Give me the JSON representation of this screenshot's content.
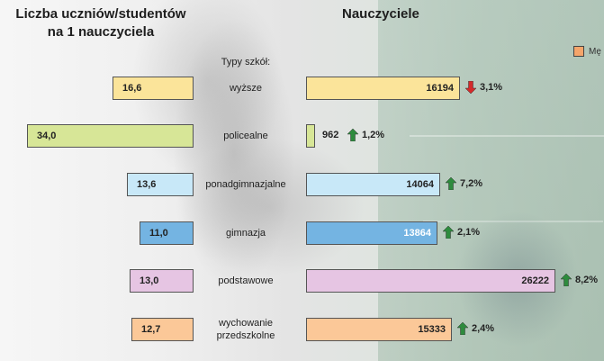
{
  "chart_data": {
    "type": "bar",
    "layout": "butterfly",
    "title_left": "Liczba uczniów/studentów\nna 1 nauczyciela",
    "title_right": "Nauczyciele",
    "category_header": "Typy szkół:",
    "legend": {
      "label": "Mę",
      "color": "#f5a56b",
      "placement": "top-right"
    },
    "categories": [
      "wyższe",
      "policealne",
      "ponadgimnazjalne",
      "gimnazja",
      "podstawowe",
      "wychowanie przedszkolne"
    ],
    "series": [
      {
        "values": [
          16.6,
          34.0,
          13.6,
          11.0,
          13.0,
          12.7
        ],
        "value_labels": [
          "16,6",
          "34,0",
          "13,6",
          "11,0",
          "13,0",
          "12,7"
        ]
      },
      {
        "values": [
          16194,
          962,
          14064,
          13864,
          26222,
          15333
        ],
        "value_labels": [
          "16194",
          "962",
          "14064",
          "13864",
          "26222",
          "15333"
        ]
      }
    ],
    "changes": [
      {
        "label": "3,1%",
        "direction": "down"
      },
      {
        "label": "1,2%",
        "direction": "up"
      },
      {
        "label": "7,2%",
        "direction": "up"
      },
      {
        "label": "2,1%",
        "direction": "up"
      },
      {
        "label": "8,2%",
        "direction": "up"
      },
      {
        "label": "2,4%",
        "direction": "up"
      }
    ],
    "colors": [
      "#fbe49a",
      "#d7e697",
      "#c8e8f8",
      "#74b4e2",
      "#e6c5e3",
      "#fbc898"
    ],
    "value_text_colors": [
      "#222222",
      "#222222",
      "#222222",
      "#ffffff",
      "#222222",
      "#222222"
    ],
    "arrow_colors": {
      "up": "#2e8b3e",
      "down": "#d42a2a"
    }
  }
}
